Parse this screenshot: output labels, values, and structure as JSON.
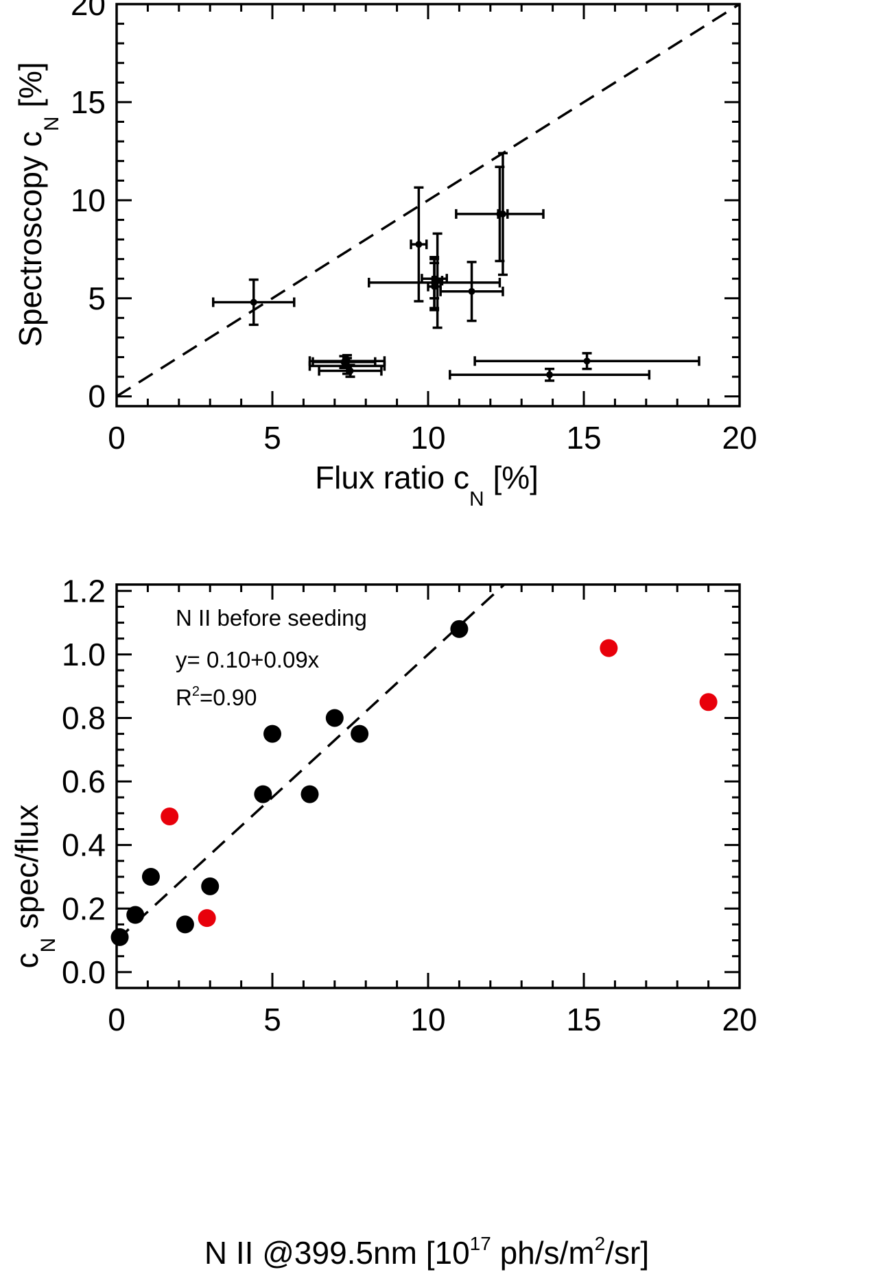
{
  "chart_data": [
    {
      "type": "scatter",
      "xlabel_main": "Flux ratio c",
      "xlabel_sub": "N",
      "xlabel_tail": " [%]",
      "ylabel_main": "Spectroscopy c",
      "ylabel_sub": "N",
      "ylabel_tail": " [%]",
      "xlim": [
        0,
        20
      ],
      "ylim": [
        -0.5,
        20
      ],
      "xticks": [
        "0",
        "5",
        "10",
        "15",
        "20"
      ],
      "yticks": [
        "0",
        "5",
        "10",
        "15",
        "20"
      ],
      "reference_line": {
        "style": "dashed",
        "from": [
          0,
          0
        ],
        "to": [
          20,
          20
        ]
      },
      "points": [
        {
          "x": 4.4,
          "y": 4.8,
          "xerr": 1.3,
          "yerr": 1.15
        },
        {
          "x": 7.4,
          "y": 1.55,
          "xerr": 1.2,
          "yerr": 0.4
        },
        {
          "x": 7.4,
          "y": 1.8,
          "xerr": 1.2,
          "yerr": 0.3
        },
        {
          "x": 7.5,
          "y": 1.3,
          "xerr": 1.0,
          "yerr": 0.3
        },
        {
          "x": 7.3,
          "y": 1.75,
          "xerr": 1.0,
          "yerr": 0.3
        },
        {
          "x": 9.7,
          "y": 7.75,
          "xerr": 0.25,
          "yerr": 2.9
        },
        {
          "x": 10.2,
          "y": 6.0,
          "xerr": 0.4,
          "yerr": 1.0
        },
        {
          "x": 10.2,
          "y": 5.8,
          "xerr": 2.1,
          "yerr": 1.3
        },
        {
          "x": 10.2,
          "y": 5.6,
          "xerr": 0.2,
          "yerr": 1.2
        },
        {
          "x": 10.3,
          "y": 5.9,
          "xerr": 0.15,
          "yerr": 2.4
        },
        {
          "x": 11.4,
          "y": 5.35,
          "xerr": 1.0,
          "yerr": 1.5
        },
        {
          "x": 12.3,
          "y": 9.3,
          "xerr": 1.4,
          "yerr": 2.4
        },
        {
          "x": 12.4,
          "y": 9.3,
          "xerr": 0.15,
          "yerr": 3.1
        },
        {
          "x": 13.9,
          "y": 1.1,
          "xerr": 3.2,
          "yerr": 0.3
        },
        {
          "x": 15.1,
          "y": 1.8,
          "xerr": 3.6,
          "yerr": 0.4
        }
      ]
    },
    {
      "type": "scatter",
      "xlabel": "N II @399.5nm [10",
      "xlabel_sup": "17",
      "xlabel_mid": " ph/s/m",
      "xlabel_sup2": "2",
      "xlabel_tail": "/sr]",
      "ylabel_pre": "c",
      "ylabel_sub": "N",
      "ylabel_main": " spec/flux",
      "xlim": [
        0,
        20
      ],
      "ylim": [
        -0.05,
        1.22
      ],
      "xticks": [
        "0",
        "5",
        "10",
        "15",
        "20"
      ],
      "yticks": [
        "0.0",
        "0.2",
        "0.4",
        "0.6",
        "0.8",
        "1.0",
        "1.2"
      ],
      "annotation_line1": "N II before seeding",
      "annotation_line2": "y= 0.10+0.09x",
      "annotation_line3_pre": "R",
      "annotation_line3_sup": "2",
      "annotation_line3_tail": "=0.90",
      "fit": {
        "intercept": 0.1,
        "slope": 0.09,
        "style": "dashed"
      },
      "colors": {
        "black_points": "#000000",
        "red_points": "#e8000b"
      },
      "series": [
        {
          "color": "#000000",
          "x": [
            0.1,
            0.6,
            1.1,
            2.2,
            3.0,
            4.7,
            5.0,
            6.2,
            7.0,
            7.8,
            11.0
          ],
          "y": [
            0.11,
            0.18,
            0.3,
            0.15,
            0.27,
            0.56,
            0.75,
            0.56,
            0.8,
            0.75,
            1.08
          ]
        },
        {
          "color": "#e8000b",
          "x": [
            1.7,
            2.9,
            15.8,
            19.0
          ],
          "y": [
            0.49,
            0.17,
            1.02,
            0.85
          ]
        }
      ]
    }
  ]
}
